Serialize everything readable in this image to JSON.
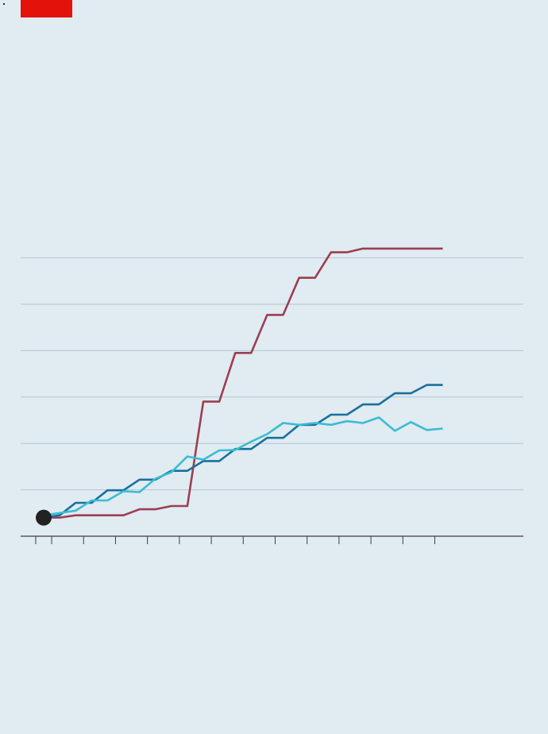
{
  "colors": {
    "background": "#e0ebf2",
    "accent_tag": "#e3120b",
    "grid": "#b7c6cf",
    "axis": "#3f3f3f",
    "marker": "#222222"
  },
  "chart_data": {
    "type": "line",
    "title": "",
    "xlabel": "",
    "ylabel": "",
    "grid": true,
    "x": [
      0,
      1,
      2,
      3,
      4,
      5,
      6,
      7,
      8,
      9,
      10,
      11,
      12,
      13,
      14,
      15,
      16,
      17,
      18,
      19,
      20,
      21,
      22,
      23,
      24,
      25
    ],
    "xlim": [
      -0.5,
      25.5
    ],
    "ylim": [
      0,
      6
    ],
    "series": [
      {
        "color": "#9b3f51",
        "values": [
          0.4,
          0.4,
          0.45,
          0.45,
          0.45,
          0.45,
          0.58,
          0.58,
          0.65,
          0.65,
          2.9,
          2.9,
          3.95,
          3.95,
          4.77,
          4.77,
          5.57,
          5.57,
          6.12,
          6.12,
          6.2,
          6.2,
          6.2,
          6.2,
          6.2,
          6.2
        ]
      },
      {
        "color": "#18709f",
        "values": [
          0.4,
          0.45,
          0.72,
          0.72,
          0.99,
          0.99,
          1.22,
          1.22,
          1.41,
          1.41,
          1.62,
          1.62,
          1.88,
          1.88,
          2.12,
          2.12,
          2.4,
          2.4,
          2.62,
          2.62,
          2.84,
          2.84,
          3.08,
          3.08,
          3.26,
          3.26
        ]
      },
      {
        "color": "#3cbcd1",
        "values": [
          0.45,
          0.5,
          0.55,
          0.77,
          0.77,
          0.97,
          0.95,
          1.24,
          1.38,
          1.72,
          1.65,
          1.85,
          1.86,
          2.04,
          2.2,
          2.44,
          2.4,
          2.44,
          2.4,
          2.48,
          2.44,
          2.56,
          2.27,
          2.46,
          2.29,
          2.32
        ]
      }
    ],
    "start_marker": {
      "x": 0,
      "y": 0.4
    }
  }
}
